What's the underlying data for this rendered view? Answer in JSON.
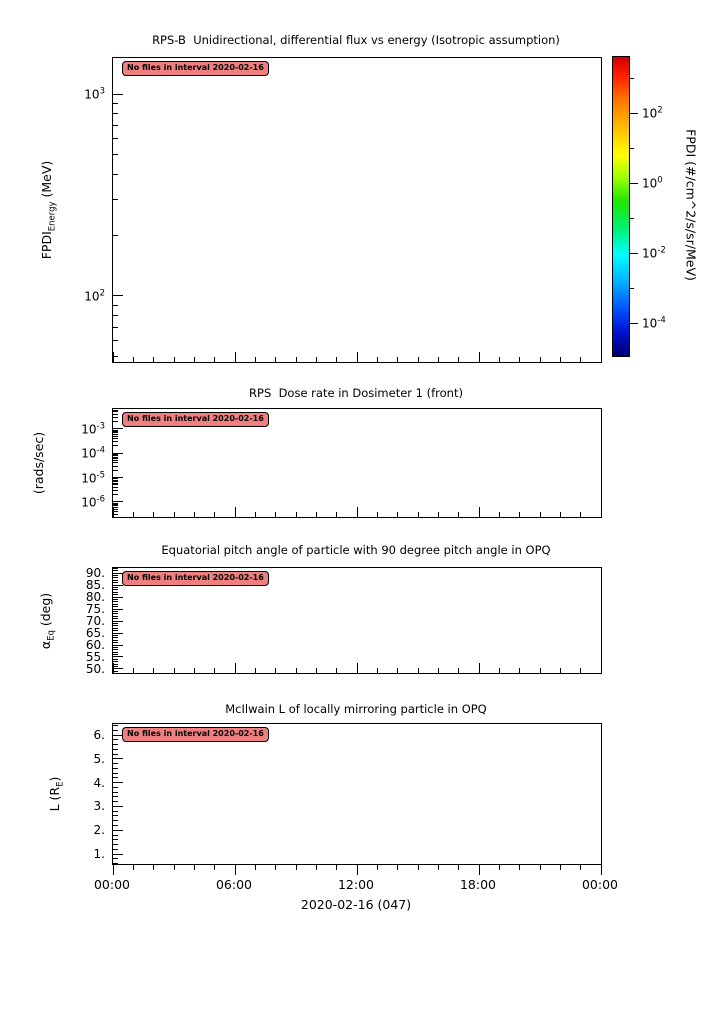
{
  "chart_data": [
    {
      "type": "heatmap",
      "title": "RPS-B  Unidirectional, differential flux vs energy (Isotropic assumption)",
      "ylabel": "FPDI_Energy (MeV)",
      "yscale": "log",
      "ylim": [
        47,
        1507
      ],
      "xlabel": "2020-02-16 (047)",
      "x_tick_labels": [
        "00:00",
        "06:00",
        "12:00",
        "18:00",
        "00:00"
      ],
      "colorbar_label": "FPDI (#/cm^2/s/sr/MeV)",
      "colorbar_scale": "log",
      "colorbar_lim": [
        1.15e-05,
        3980
      ],
      "colorbar_tick_labels": [
        "10^2",
        "10^0",
        "10^-2",
        "10^-4"
      ],
      "series": [],
      "annotation": "No files in interval 2020-02-16"
    },
    {
      "type": "line",
      "title": "RPS  Dose rate in Dosimeter 1 (front)",
      "ylabel": "(rads/sec)",
      "yscale": "log",
      "ylim": [
        2.4e-07,
        0.0066
      ],
      "y_tick_labels": [
        "10^-3",
        "10^-4",
        "10^-5",
        "10^-6"
      ],
      "series": [],
      "annotation": "No files in interval 2020-02-16"
    },
    {
      "type": "line",
      "title": "Equatorial pitch angle of particle with 90 degree pitch angle in OPQ",
      "ylabel": "α_Eq (deg)",
      "yscale": "linear",
      "ylim": [
        48.3,
        92.1
      ],
      "y_tick_labels": [
        "90.",
        "85.",
        "80.",
        "75.",
        "70.",
        "65.",
        "60.",
        "55.",
        "50."
      ],
      "series": [],
      "annotation": "No files in interval 2020-02-16"
    },
    {
      "type": "line",
      "title": "McIlwain L of locally mirroring particle in OPQ",
      "ylabel": "L (R_E)",
      "yscale": "linear",
      "ylim": [
        0.58,
        6.46
      ],
      "y_tick_labels": [
        "6.",
        "5.",
        "4.",
        "3.",
        "2.",
        "1."
      ],
      "xlabel": "2020-02-16 (047)",
      "x_tick_labels": [
        "00:00",
        "06:00",
        "12:00",
        "18:00",
        "00:00"
      ],
      "series": [],
      "annotation": "No files in interval 2020-02-16"
    }
  ],
  "figure": {
    "background": "#ffffff",
    "line_color": "#000000",
    "badge": {
      "text": "No files in interval 2020-02-16",
      "fill": "#f08080",
      "border": "#000000"
    },
    "panels": [
      {
        "id": "flux",
        "title": "RPS-B  Unidirectional, differential flux vs energy (Isotropic assumption)",
        "ylabel": {
          "pre": "FPDI",
          "sub": "Energy",
          "post": " (MeV)"
        },
        "y_axis": {
          "type": "log",
          "top": 1507,
          "bottom": 47,
          "majors": [
            {
              "value": 1000,
              "exp": 3
            },
            {
              "value": 100,
              "exp": 2
            }
          ]
        }
      },
      {
        "id": "dose",
        "title": "RPS  Dose rate in Dosimeter 1 (front)",
        "ylabel": {
          "pre": "(rads/sec)"
        },
        "y_axis": {
          "type": "log",
          "top": 0.0066,
          "bottom": 2.4e-07,
          "majors": [
            {
              "value": 0.001,
              "exp": -3
            },
            {
              "value": 0.0001,
              "exp": -4
            },
            {
              "value": 1e-05,
              "exp": -5
            },
            {
              "value": 1e-06,
              "exp": -6
            }
          ]
        }
      },
      {
        "id": "pitch",
        "title": "Equatorial pitch angle of particle with 90 degree pitch angle in OPQ",
        "ylabel": {
          "pre": "α",
          "sub": "Eq",
          "post": " (deg)"
        },
        "y_axis": {
          "type": "linear",
          "top": 92.1,
          "bottom": 48.3,
          "major_step": 5,
          "minor_step": 1,
          "majors": [
            {
              "value": 90,
              "label": "90."
            },
            {
              "value": 85,
              "label": "85."
            },
            {
              "value": 80,
              "label": "80."
            },
            {
              "value": 75,
              "label": "75."
            },
            {
              "value": 70,
              "label": "70."
            },
            {
              "value": 65,
              "label": "65."
            },
            {
              "value": 60,
              "label": "60."
            },
            {
              "value": 55,
              "label": "55."
            },
            {
              "value": 50,
              "label": "50."
            }
          ]
        }
      },
      {
        "id": "lshell",
        "title": "McIlwain L of locally mirroring particle in OPQ",
        "ylabel": {
          "pre": "L (R",
          "sub": "E",
          "post": ")"
        },
        "x_ticks_out": true,
        "y_axis": {
          "type": "linear",
          "top": 6.46,
          "bottom": 0.58,
          "major_step": 1,
          "minor_step": 0.2,
          "majors": [
            {
              "value": 6,
              "label": "6."
            },
            {
              "value": 5,
              "label": "5."
            },
            {
              "value": 4,
              "label": "4."
            },
            {
              "value": 3,
              "label": "3."
            },
            {
              "value": 2,
              "label": "2."
            },
            {
              "value": 1,
              "label": "1."
            }
          ]
        }
      }
    ],
    "x_axis": {
      "total_hours": 24,
      "minor_step_hours": 1,
      "major_hours": [
        0,
        6,
        12,
        18,
        24
      ],
      "labels": [
        "00:00",
        "06:00",
        "12:00",
        "18:00",
        "00:00"
      ],
      "date_label": "2020-02-16 (047)"
    },
    "colorbar": {
      "label": {
        "pre": "FPDI (#/cm^2/s/sr/MeV)"
      },
      "axis": {
        "type": "log",
        "top": 3980,
        "bottom": 1.15e-05
      },
      "majors": [
        {
          "value": 100,
          "exp": 2
        },
        {
          "value": 1,
          "exp": 0
        },
        {
          "value": 0.01,
          "exp": -2
        },
        {
          "value": 0.0001,
          "exp": -4
        }
      ],
      "minors": [
        1000,
        10,
        0.1,
        0.001
      ],
      "gradient": [
        "#cd0000 0%",
        "#ff1e00 6%",
        "#ff7b00 15%",
        "#ffc800 25%",
        "#fbff00 33%",
        "#a4ff00 40%",
        "#22e700 48%",
        "#00f06e 57%",
        "#00ffff 66%",
        "#00b2ff 75%",
        "#0055ff 84%",
        "#0011d0 92%",
        "#000072 100%"
      ]
    }
  }
}
